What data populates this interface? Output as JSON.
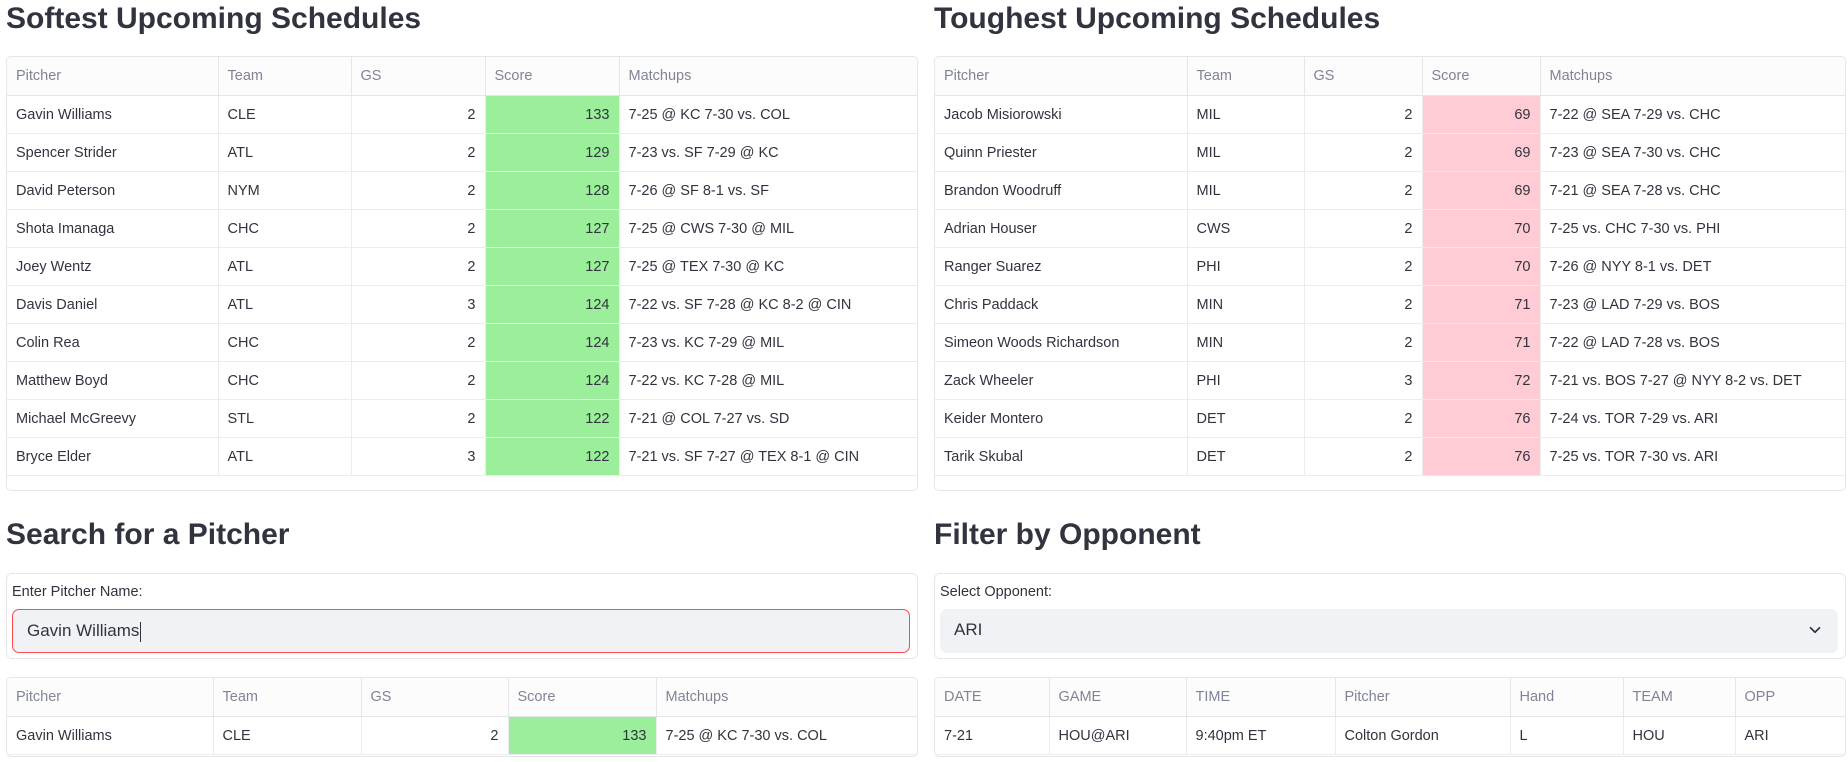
{
  "softest": {
    "title": "Softest Upcoming Schedules",
    "columns": [
      "Pitcher",
      "Team",
      "GS",
      "Score",
      "Matchups"
    ],
    "rows": [
      {
        "pitcher": "Gavin Williams",
        "team": "CLE",
        "gs": "2",
        "score": "133",
        "matchups": "7-25 @ KC  7-30 vs. COL"
      },
      {
        "pitcher": "Spencer Strider",
        "team": "ATL",
        "gs": "2",
        "score": "129",
        "matchups": "7-23 vs. SF  7-29 @ KC"
      },
      {
        "pitcher": "David Peterson",
        "team": "NYM",
        "gs": "2",
        "score": "128",
        "matchups": "7-26 @ SF  8-1 vs. SF"
      },
      {
        "pitcher": "Shota Imanaga",
        "team": "CHC",
        "gs": "2",
        "score": "127",
        "matchups": "7-25 @ CWS  7-30 @ MIL"
      },
      {
        "pitcher": "Joey Wentz",
        "team": "ATL",
        "gs": "2",
        "score": "127",
        "matchups": "7-25 @ TEX  7-30 @ KC"
      },
      {
        "pitcher": "Davis Daniel",
        "team": "ATL",
        "gs": "3",
        "score": "124",
        "matchups": "7-22 vs. SF  7-28 @ KC  8-2 @ CIN"
      },
      {
        "pitcher": "Colin Rea",
        "team": "CHC",
        "gs": "2",
        "score": "124",
        "matchups": "7-23 vs. KC  7-29 @ MIL"
      },
      {
        "pitcher": "Matthew Boyd",
        "team": "CHC",
        "gs": "2",
        "score": "124",
        "matchups": "7-22 vs. KC  7-28 @ MIL"
      },
      {
        "pitcher": "Michael McGreevy",
        "team": "STL",
        "gs": "2",
        "score": "122",
        "matchups": "7-21 @ COL  7-27 vs. SD"
      },
      {
        "pitcher": "Bryce Elder",
        "team": "ATL",
        "gs": "3",
        "score": "122",
        "matchups": "7-21 vs. SF  7-27 @ TEX  8-1 @ CIN"
      }
    ],
    "score_color": "#9bef9b"
  },
  "toughest": {
    "title": "Toughest Upcoming Schedules",
    "columns": [
      "Pitcher",
      "Team",
      "GS",
      "Score",
      "Matchups"
    ],
    "rows": [
      {
        "pitcher": "Jacob Misiorowski",
        "team": "MIL",
        "gs": "2",
        "score": "69",
        "matchups": "7-22 @ SEA  7-29 vs. CHC"
      },
      {
        "pitcher": "Quinn Priester",
        "team": "MIL",
        "gs": "2",
        "score": "69",
        "matchups": "7-23 @ SEA  7-30 vs. CHC"
      },
      {
        "pitcher": "Brandon Woodruff",
        "team": "MIL",
        "gs": "2",
        "score": "69",
        "matchups": "7-21 @ SEA  7-28 vs. CHC"
      },
      {
        "pitcher": "Adrian Houser",
        "team": "CWS",
        "gs": "2",
        "score": "70",
        "matchups": "7-25 vs. CHC  7-30 vs. PHI"
      },
      {
        "pitcher": "Ranger Suarez",
        "team": "PHI",
        "gs": "2",
        "score": "70",
        "matchups": "7-26 @ NYY  8-1 vs. DET"
      },
      {
        "pitcher": "Chris Paddack",
        "team": "MIN",
        "gs": "2",
        "score": "71",
        "matchups": "7-23 @ LAD  7-29 vs. BOS"
      },
      {
        "pitcher": "Simeon Woods Richardson",
        "team": "MIN",
        "gs": "2",
        "score": "71",
        "matchups": "7-22 @ LAD  7-28 vs. BOS"
      },
      {
        "pitcher": "Zack Wheeler",
        "team": "PHI",
        "gs": "3",
        "score": "72",
        "matchups": "7-21 vs. BOS  7-27 @ NYY  8-2 vs. DET"
      },
      {
        "pitcher": "Keider Montero",
        "team": "DET",
        "gs": "2",
        "score": "76",
        "matchups": "7-24 vs. TOR  7-29 vs. ARI"
      },
      {
        "pitcher": "Tarik Skubal",
        "team": "DET",
        "gs": "2",
        "score": "76",
        "matchups": "7-25 vs. TOR  7-30 vs. ARI"
      }
    ],
    "score_color": "#ffccd5"
  },
  "search": {
    "title": "Search for a Pitcher",
    "label": "Enter Pitcher Name:",
    "value": "Gavin Williams",
    "columns": [
      "Pitcher",
      "Team",
      "GS",
      "Score",
      "Matchups"
    ],
    "rows": [
      {
        "pitcher": "Gavin Williams",
        "team": "CLE",
        "gs": "2",
        "score": "133",
        "matchups": "7-25 @ KC  7-30 vs. COL"
      }
    ]
  },
  "filter": {
    "title": "Filter by Opponent",
    "label": "Select Opponent:",
    "selected": "ARI",
    "columns": [
      "DATE",
      "GAME",
      "TIME",
      "Pitcher",
      "Hand",
      "TEAM",
      "OPP"
    ],
    "rows": [
      {
        "date": "7-21",
        "game": "HOU@ARI",
        "time": "9:40pm ET",
        "pitcher": "Colton Gordon",
        "hand": "L",
        "team": "HOU",
        "opp": "ARI"
      }
    ]
  }
}
